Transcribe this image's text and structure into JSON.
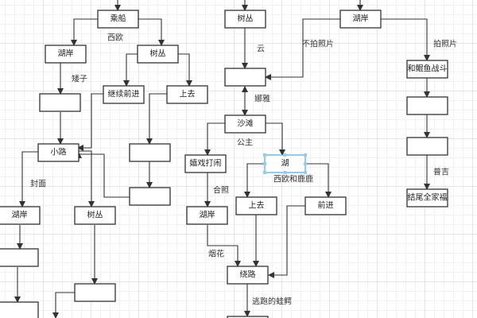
{
  "diagram": {
    "nodes": [
      "乘船",
      "湖岸",
      "树丛",
      "",
      "继续前进",
      "上去",
      "小路",
      "",
      "",
      "湖岸",
      "树丛",
      "",
      "",
      "",
      "树丛",
      "",
      "沙滩",
      "嬉戏打闹",
      "湖",
      "湖岸",
      "上去",
      "前进",
      "绕路",
      "",
      "湖岸",
      "和鲲鱼战斗",
      "",
      "",
      "结尾全家福"
    ],
    "edge_labels": [
      "西欧",
      "矮子",
      "封面",
      "云",
      "不拍照片",
      "拍照片",
      "娜雅",
      "公主",
      "西欧和鹿鹿",
      "合照",
      "烟花",
      "逃跑的蛙鳄",
      "普吉"
    ],
    "selected_node": "湖",
    "colors": {
      "stroke": "#333333",
      "selection": "#5ab0e0",
      "grid": "#e4e4e4"
    }
  }
}
